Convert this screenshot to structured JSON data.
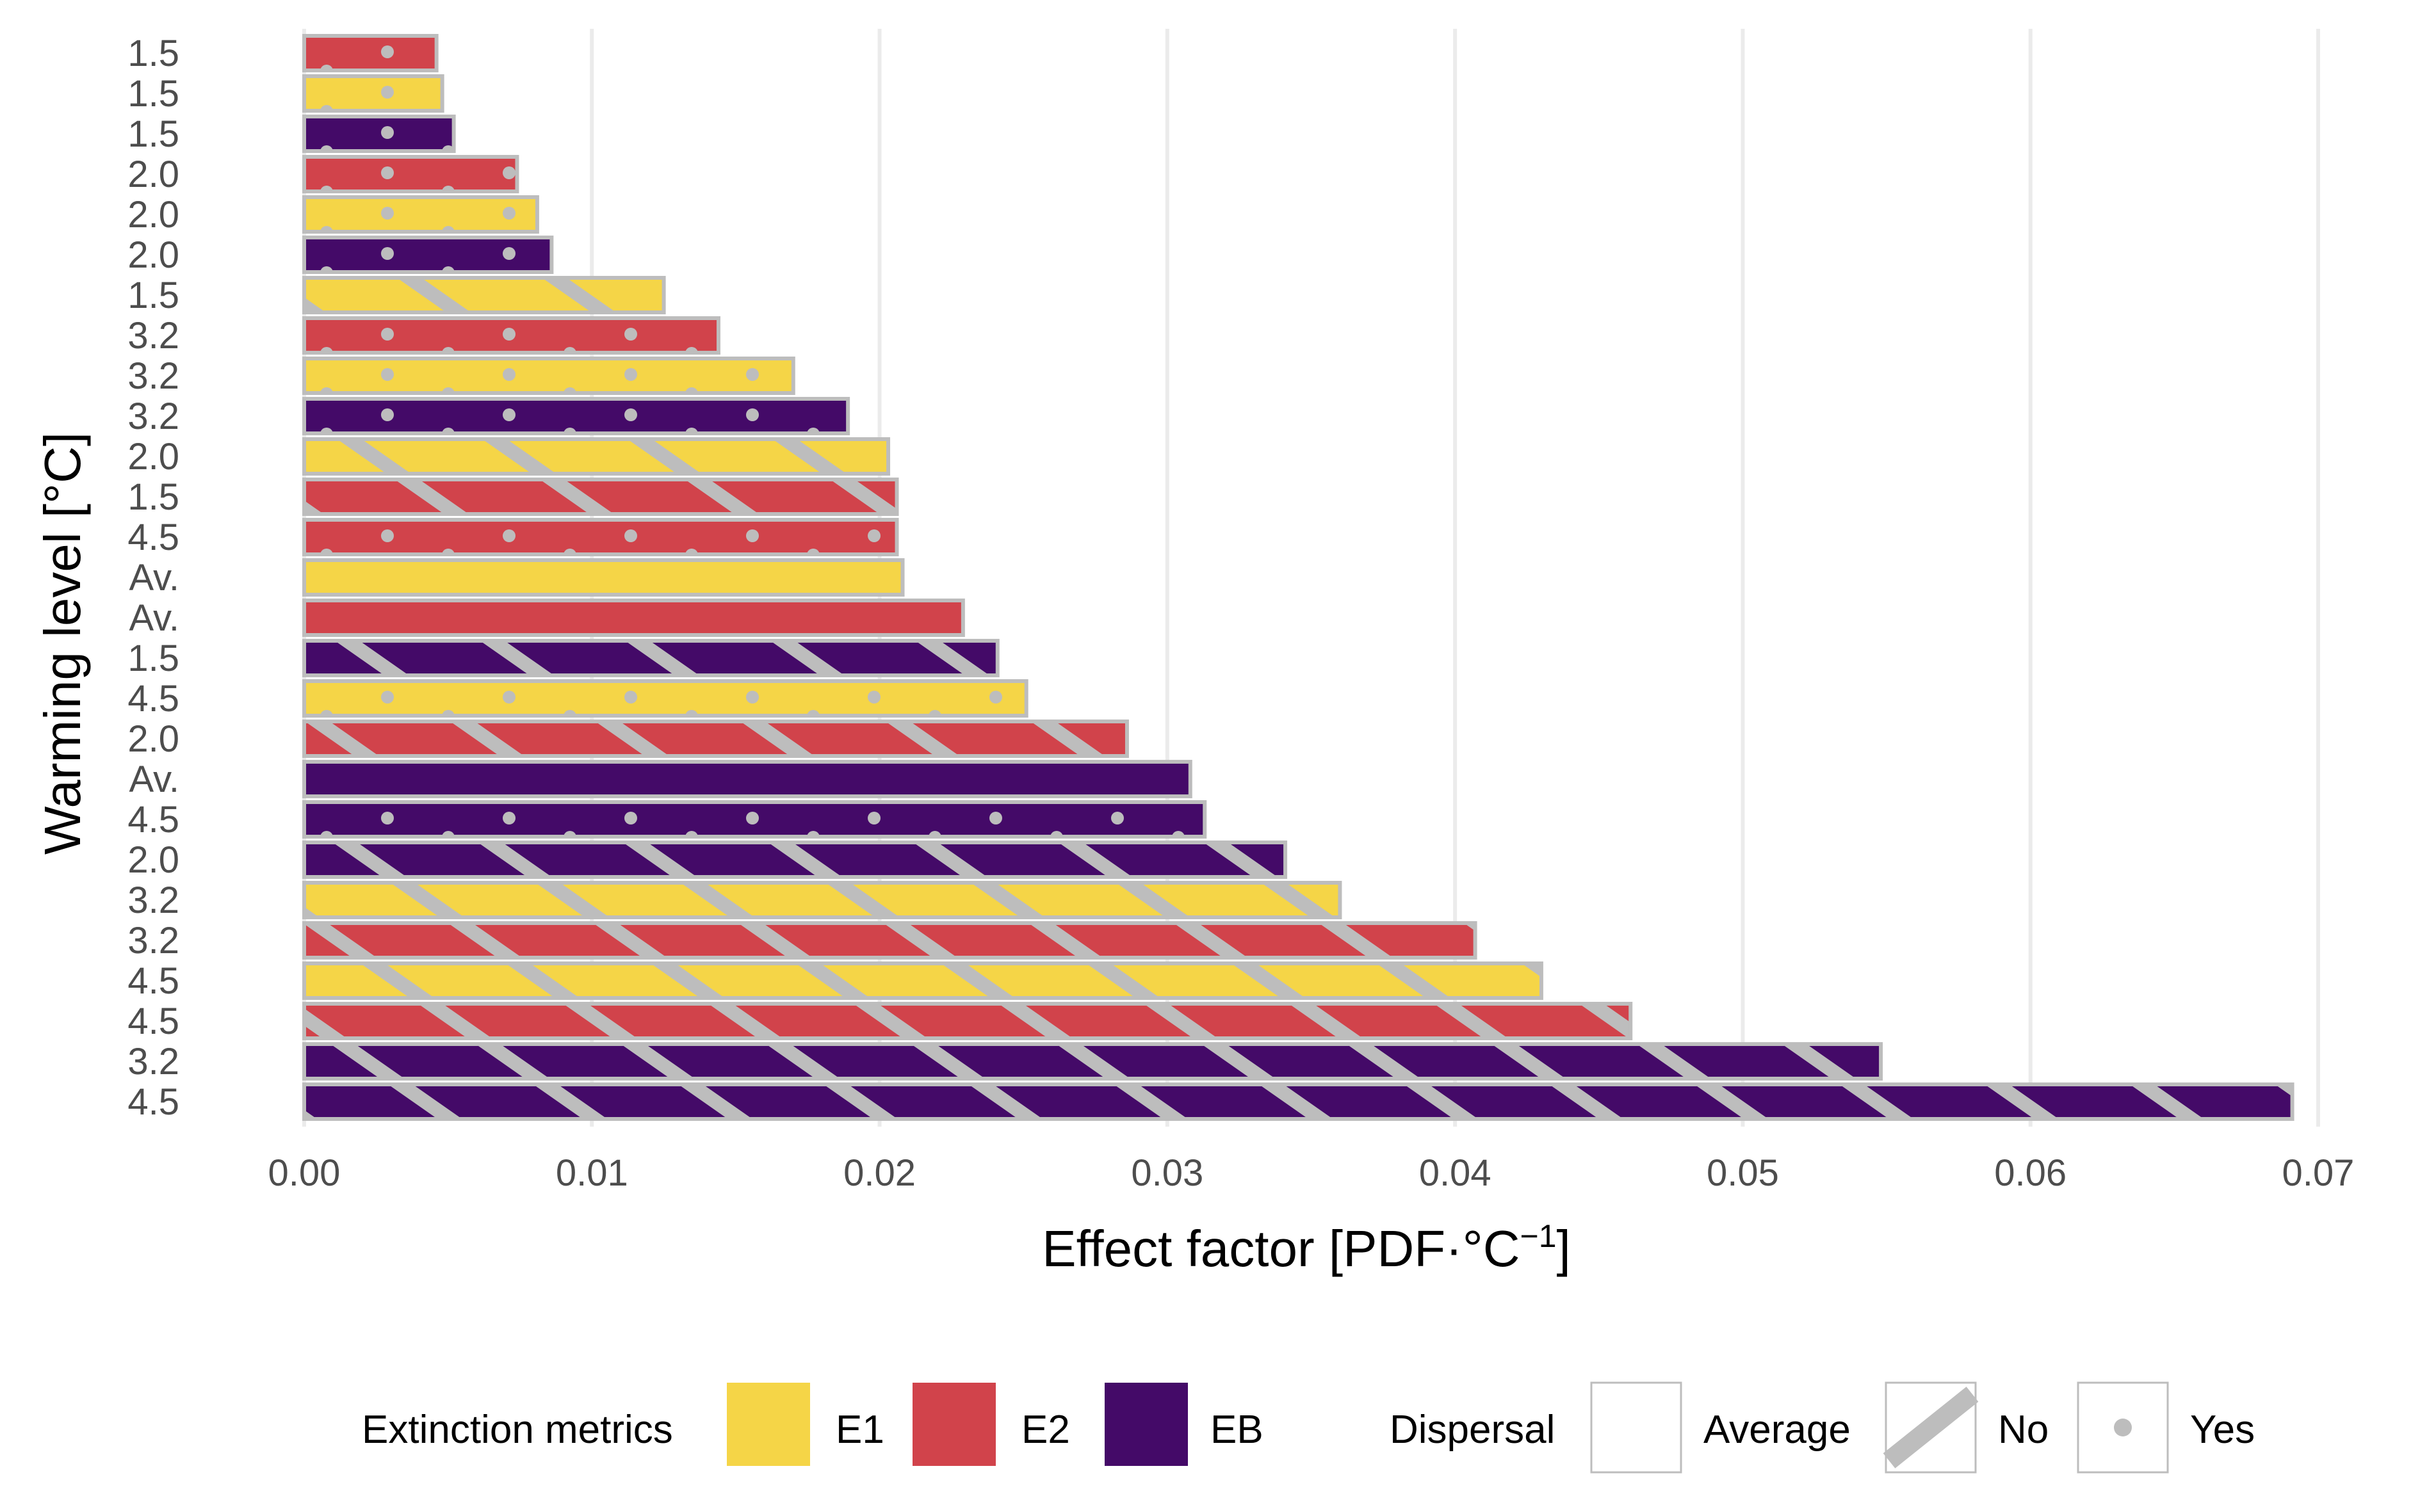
{
  "colors": {
    "E1": "#F5D547",
    "E2": "#D1434B",
    "EB": "#440A68",
    "bar_border": "#BDBDBD",
    "grid": "#EBEBEB",
    "pattern": "#BDBDBD"
  },
  "legend": {
    "metric_title": "Extinction metrics",
    "metric_items": [
      {
        "key": "E1",
        "label": "E1"
      },
      {
        "key": "E2",
        "label": "E2"
      },
      {
        "key": "EB",
        "label": "EB"
      }
    ],
    "dispersal_title": "Dispersal",
    "dispersal_items": [
      {
        "key": "average",
        "label": "Average"
      },
      {
        "key": "no",
        "label": "No"
      },
      {
        "key": "yes",
        "label": "Yes"
      }
    ]
  },
  "chart_data": {
    "type": "bar",
    "orientation": "horizontal",
    "title": "",
    "xlabel_main": "Effect factor [PDF·°C",
    "xlabel_sup": "−1",
    "xlabel_end": "]",
    "ylabel": "Warming level [°C]",
    "xlim": [
      0,
      0.07
    ],
    "xticks": [
      0.0,
      0.01,
      0.02,
      0.03,
      0.04,
      0.05,
      0.06,
      0.07
    ],
    "xtick_labels": [
      "0.00",
      "0.01",
      "0.02",
      "0.03",
      "0.04",
      "0.05",
      "0.06",
      "0.07"
    ],
    "grid": true,
    "legend_position": "bottom",
    "bars": [
      {
        "label": "1.5",
        "value": 0.0046,
        "metric": "E2",
        "dispersal": "yes"
      },
      {
        "label": "1.5",
        "value": 0.0048,
        "metric": "E1",
        "dispersal": "yes"
      },
      {
        "label": "1.5",
        "value": 0.0052,
        "metric": "EB",
        "dispersal": "yes"
      },
      {
        "label": "2.0",
        "value": 0.0074,
        "metric": "E2",
        "dispersal": "yes"
      },
      {
        "label": "2.0",
        "value": 0.0081,
        "metric": "E1",
        "dispersal": "yes"
      },
      {
        "label": "2.0",
        "value": 0.0086,
        "metric": "EB",
        "dispersal": "yes"
      },
      {
        "label": "1.5",
        "value": 0.0125,
        "metric": "E1",
        "dispersal": "no"
      },
      {
        "label": "3.2",
        "value": 0.0144,
        "metric": "E2",
        "dispersal": "yes"
      },
      {
        "label": "3.2",
        "value": 0.017,
        "metric": "E1",
        "dispersal": "yes"
      },
      {
        "label": "3.2",
        "value": 0.0189,
        "metric": "EB",
        "dispersal": "yes"
      },
      {
        "label": "2.0",
        "value": 0.0203,
        "metric": "E1",
        "dispersal": "no"
      },
      {
        "label": "1.5",
        "value": 0.0206,
        "metric": "E2",
        "dispersal": "no"
      },
      {
        "label": "4.5",
        "value": 0.0206,
        "metric": "E2",
        "dispersal": "yes"
      },
      {
        "label": "Av.",
        "value": 0.0208,
        "metric": "E1",
        "dispersal": "average"
      },
      {
        "label": "Av.",
        "value": 0.0229,
        "metric": "E2",
        "dispersal": "average"
      },
      {
        "label": "1.5",
        "value": 0.0241,
        "metric": "EB",
        "dispersal": "no"
      },
      {
        "label": "4.5",
        "value": 0.0251,
        "metric": "E1",
        "dispersal": "yes"
      },
      {
        "label": "2.0",
        "value": 0.0286,
        "metric": "E2",
        "dispersal": "no"
      },
      {
        "label": "Av.",
        "value": 0.0308,
        "metric": "EB",
        "dispersal": "average"
      },
      {
        "label": "4.5",
        "value": 0.0313,
        "metric": "EB",
        "dispersal": "yes"
      },
      {
        "label": "2.0",
        "value": 0.0341,
        "metric": "EB",
        "dispersal": "no"
      },
      {
        "label": "3.2",
        "value": 0.036,
        "metric": "E1",
        "dispersal": "no"
      },
      {
        "label": "3.2",
        "value": 0.0407,
        "metric": "E2",
        "dispersal": "no"
      },
      {
        "label": "4.5",
        "value": 0.043,
        "metric": "E1",
        "dispersal": "no"
      },
      {
        "label": "4.5",
        "value": 0.0461,
        "metric": "E2",
        "dispersal": "no"
      },
      {
        "label": "3.2",
        "value": 0.0548,
        "metric": "EB",
        "dispersal": "no"
      },
      {
        "label": "4.5",
        "value": 0.0691,
        "metric": "EB",
        "dispersal": "no"
      }
    ]
  }
}
